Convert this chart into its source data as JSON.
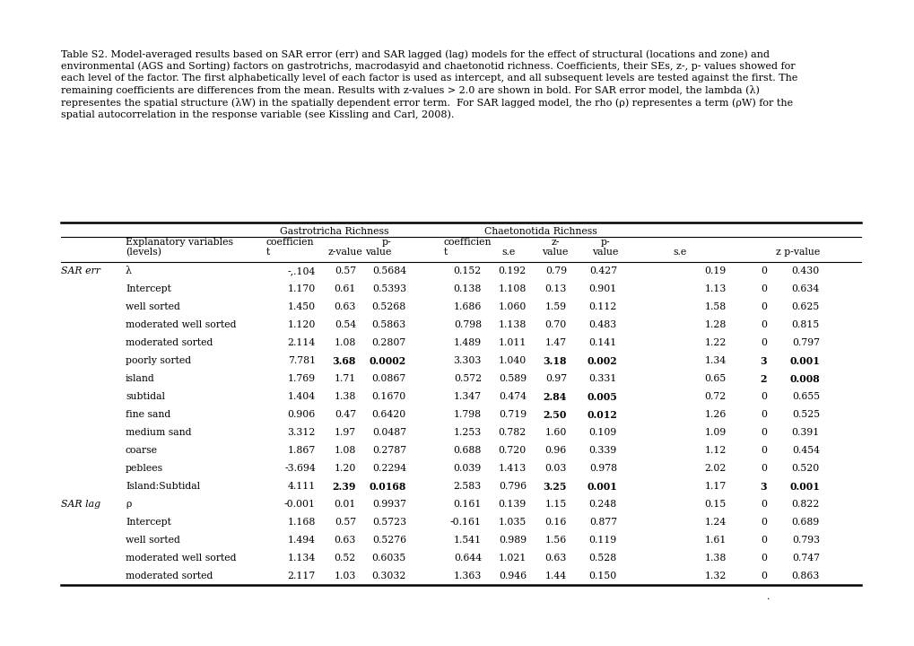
{
  "caption_lines": [
    "Table S2. Model-averaged results based on SAR error (err) and SAR lagged (lag) models for the effect of structural (locations and zone) and",
    "environmental (AGS and Sorting) factors on gastrotrichs, macrodasyid and chaetonotid richness. Coefficients, their SEs, z-, p- values showed for",
    "each level of the factor. The first alphabetically level of each factor is used as intercept, and all subsequent levels are tested against the first. The",
    "remaining coefficients are differences from the mean. Results with z-values > 2.0 are shown in bold. For SAR error model, the lambda (λ)",
    "representes the spatial structure (λW) in the spatially dependent error term.  For SAR lagged model, the rho (ρ) representes a term (ρW) for the",
    "spatial autocorrelation in the response variable (see Kissling and Carl, 2008)."
  ],
  "rows": [
    [
      "SAR err",
      "λ",
      "-,.104",
      "0.57",
      "0.5684",
      "0.152",
      "0.192",
      "0.79",
      "0.427",
      "0.19",
      "0",
      "0.430"
    ],
    [
      "",
      "Intercept",
      "1.170",
      "0.61",
      "0.5393",
      "0.138",
      "1.108",
      "0.13",
      "0.901",
      "1.13",
      "0",
      "0.634"
    ],
    [
      "",
      "well sorted",
      "1.450",
      "0.63",
      "0.5268",
      "1.686",
      "1.060",
      "1.59",
      "0.112",
      "1.58",
      "0",
      "0.625"
    ],
    [
      "",
      "moderated well sorted",
      "1.120",
      "0.54",
      "0.5863",
      "0.798",
      "1.138",
      "0.70",
      "0.483",
      "1.28",
      "0",
      "0.815"
    ],
    [
      "",
      "moderated sorted",
      "2.114",
      "1.08",
      "0.2807",
      "1.489",
      "1.011",
      "1.47",
      "0.141",
      "1.22",
      "0",
      "0.797"
    ],
    [
      "",
      "poorly sorted",
      "7.781",
      "3.68",
      "0.0002",
      "3.303",
      "1.040",
      "3.18",
      "0.002",
      "1.34",
      "3",
      "0.001"
    ],
    [
      "",
      "island",
      "1.769",
      "1.71",
      "0.0867",
      "0.572",
      "0.589",
      "0.97",
      "0.331",
      "0.65",
      "2",
      "0.008"
    ],
    [
      "",
      "subtidal",
      "1.404",
      "1.38",
      "0.1670",
      "1.347",
      "0.474",
      "2.84",
      "0.005",
      "0.72",
      "0",
      "0.655"
    ],
    [
      "",
      "fine sand",
      "0.906",
      "0.47",
      "0.6420",
      "1.798",
      "0.719",
      "2.50",
      "0.012",
      "1.26",
      "0",
      "0.525"
    ],
    [
      "",
      "medium sand",
      "3.312",
      "1.97",
      "0.0487",
      "1.253",
      "0.782",
      "1.60",
      "0.109",
      "1.09",
      "0",
      "0.391"
    ],
    [
      "",
      "coarse",
      "1.867",
      "1.08",
      "0.2787",
      "0.688",
      "0.720",
      "0.96",
      "0.339",
      "1.12",
      "0",
      "0.454"
    ],
    [
      "",
      "peblees",
      "-3.694",
      "1.20",
      "0.2294",
      "0.039",
      "1.413",
      "0.03",
      "0.978",
      "2.02",
      "0",
      "0.520"
    ],
    [
      "",
      "Island:Subtidal",
      "4.111",
      "2.39",
      "0.0168",
      "2.583",
      "0.796",
      "3.25",
      "0.001",
      "1.17",
      "3",
      "0.001"
    ],
    [
      "SAR lag",
      "ρ",
      "-0.001",
      "0.01",
      "0.9937",
      "0.161",
      "0.139",
      "1.15",
      "0.248",
      "0.15",
      "0",
      "0.822"
    ],
    [
      "",
      "Intercept",
      "1.168",
      "0.57",
      "0.5723",
      "-0.161",
      "1.035",
      "0.16",
      "0.877",
      "1.24",
      "0",
      "0.689"
    ],
    [
      "",
      "well sorted",
      "1.494",
      "0.63",
      "0.5276",
      "1.541",
      "0.989",
      "1.56",
      "0.119",
      "1.61",
      "0",
      "0.793"
    ],
    [
      "",
      "moderated well sorted",
      "1.134",
      "0.52",
      "0.6035",
      "0.644",
      "1.021",
      "0.63",
      "0.528",
      "1.38",
      "0",
      "0.747"
    ],
    [
      "",
      "moderated sorted",
      "2.117",
      "1.03",
      "0.3032",
      "1.363",
      "0.946",
      "1.44",
      "0.150",
      "1.32",
      "0",
      "0.863"
    ]
  ],
  "bold_map": {
    "5": [
      3,
      4,
      7,
      8,
      10,
      11
    ],
    "6": [
      10,
      11
    ],
    "7": [
      7,
      8
    ],
    "8": [
      7,
      8
    ],
    "12": [
      3,
      4,
      7,
      8,
      10,
      11
    ]
  },
  "font_size": 7.8,
  "caption_font_size": 8.0,
  "fig_width": 10.2,
  "fig_height": 7.2,
  "dpi": 100
}
